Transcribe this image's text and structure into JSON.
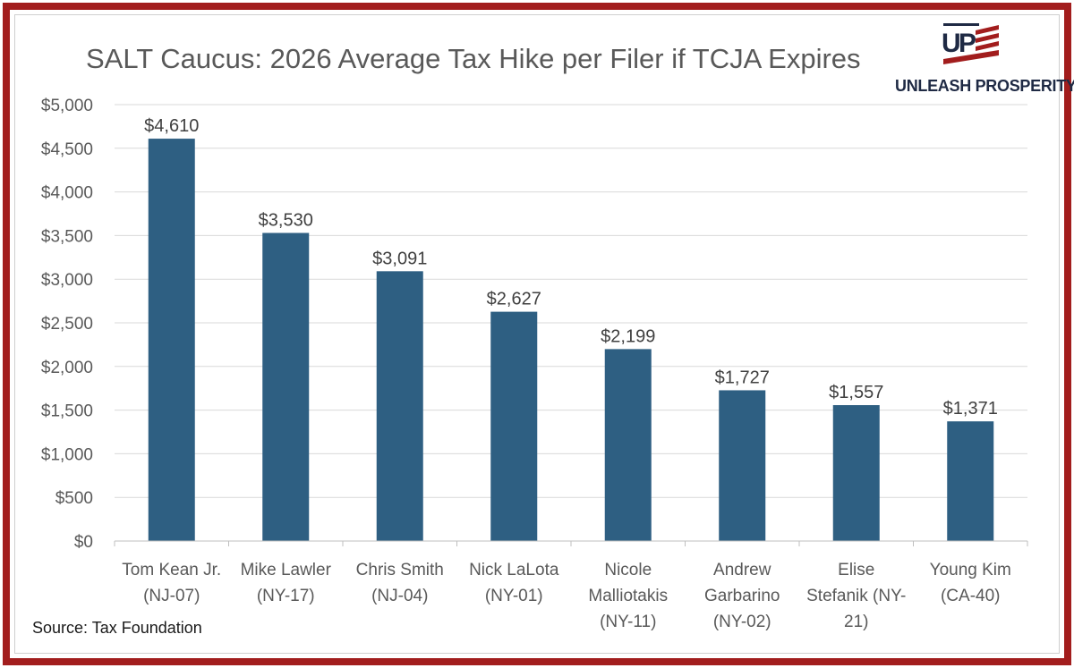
{
  "title": "SALT Caucus: 2026 Average Tax Hike per Filer if TCJA Expires",
  "logo": {
    "text": "UNLEASH PROSPERITY",
    "mark": "UP-flag-logo-icon"
  },
  "source": "Source: Tax Foundation",
  "colors": {
    "frame": "#a21d1d",
    "bar": "#2e5f82",
    "grid": "#d9d9d9",
    "text": "#595959",
    "logo_red": "#a21d1d",
    "logo_navy": "#1f2a44"
  },
  "chart_data": {
    "type": "bar",
    "categories": [
      [
        "Tom Kean Jr.",
        "(NJ-07)"
      ],
      [
        "Mike Lawler",
        "(NY-17)"
      ],
      [
        "Chris Smith",
        "(NJ-04)"
      ],
      [
        "Nick LaLota",
        "(NY-01)"
      ],
      [
        "Nicole",
        "Malliotakis",
        "(NY-11)"
      ],
      [
        "Andrew",
        "Garbarino",
        "(NY-02)"
      ],
      [
        "Elise",
        "Stefanik (NY-",
        "21)"
      ],
      [
        "Young Kim",
        "(CA-40)"
      ]
    ],
    "values": [
      4610,
      3530,
      3091,
      2627,
      2199,
      1727,
      1557,
      1371
    ],
    "data_labels": [
      "$4,610",
      "$3,530",
      "$3,091",
      "$2,627",
      "$2,199",
      "$1,727",
      "$1,557",
      "$1,371"
    ],
    "y_ticks": [
      "$0",
      "$500",
      "$1,000",
      "$1,500",
      "$2,000",
      "$2,500",
      "$3,000",
      "$3,500",
      "$4,000",
      "$4,500",
      "$5,000"
    ],
    "ylim": [
      0,
      5000
    ],
    "y_step": 500,
    "grid": true,
    "legend": "none"
  }
}
